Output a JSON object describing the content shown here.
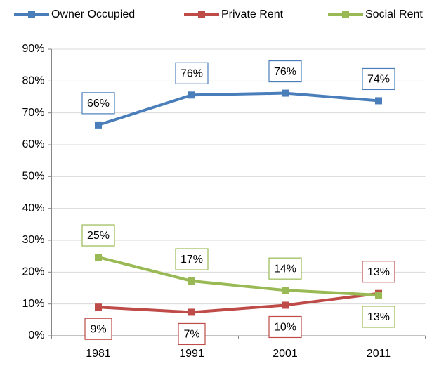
{
  "chart_data": {
    "type": "line",
    "categories": [
      "1981",
      "1991",
      "2001",
      "2011"
    ],
    "series": [
      {
        "name": "Owner Occupied",
        "color": "#4a7ebb",
        "values": [
          66.2,
          75.6,
          76.2,
          73.8
        ],
        "value_labels": [
          "66%",
          "76%",
          "76%",
          "74%"
        ]
      },
      {
        "name": "Private Rent",
        "color": "#be4b48",
        "values": [
          9.0,
          7.4,
          9.6,
          13.3
        ],
        "value_labels": [
          "9%",
          "7%",
          "10%",
          "13%"
        ]
      },
      {
        "name": "Social Rent",
        "color": "#98b954",
        "values": [
          24.7,
          17.2,
          14.3,
          12.8
        ],
        "value_labels": [
          "25%",
          "17%",
          "14%",
          "13%"
        ]
      }
    ],
    "ylim": [
      0,
      90
    ],
    "yticks": [
      {
        "value": 0,
        "label": "0%"
      },
      {
        "value": 10,
        "label": "10%"
      },
      {
        "value": 20,
        "label": "20%"
      },
      {
        "value": 30,
        "label": "30%"
      },
      {
        "value": 40,
        "label": "40%"
      },
      {
        "value": 50,
        "label": "50%"
      },
      {
        "value": 60,
        "label": "60%"
      },
      {
        "value": 70,
        "label": "70%"
      },
      {
        "value": 80,
        "label": "80%"
      },
      {
        "value": 90,
        "label": "90%"
      }
    ],
    "grid": true,
    "legend": "top"
  }
}
